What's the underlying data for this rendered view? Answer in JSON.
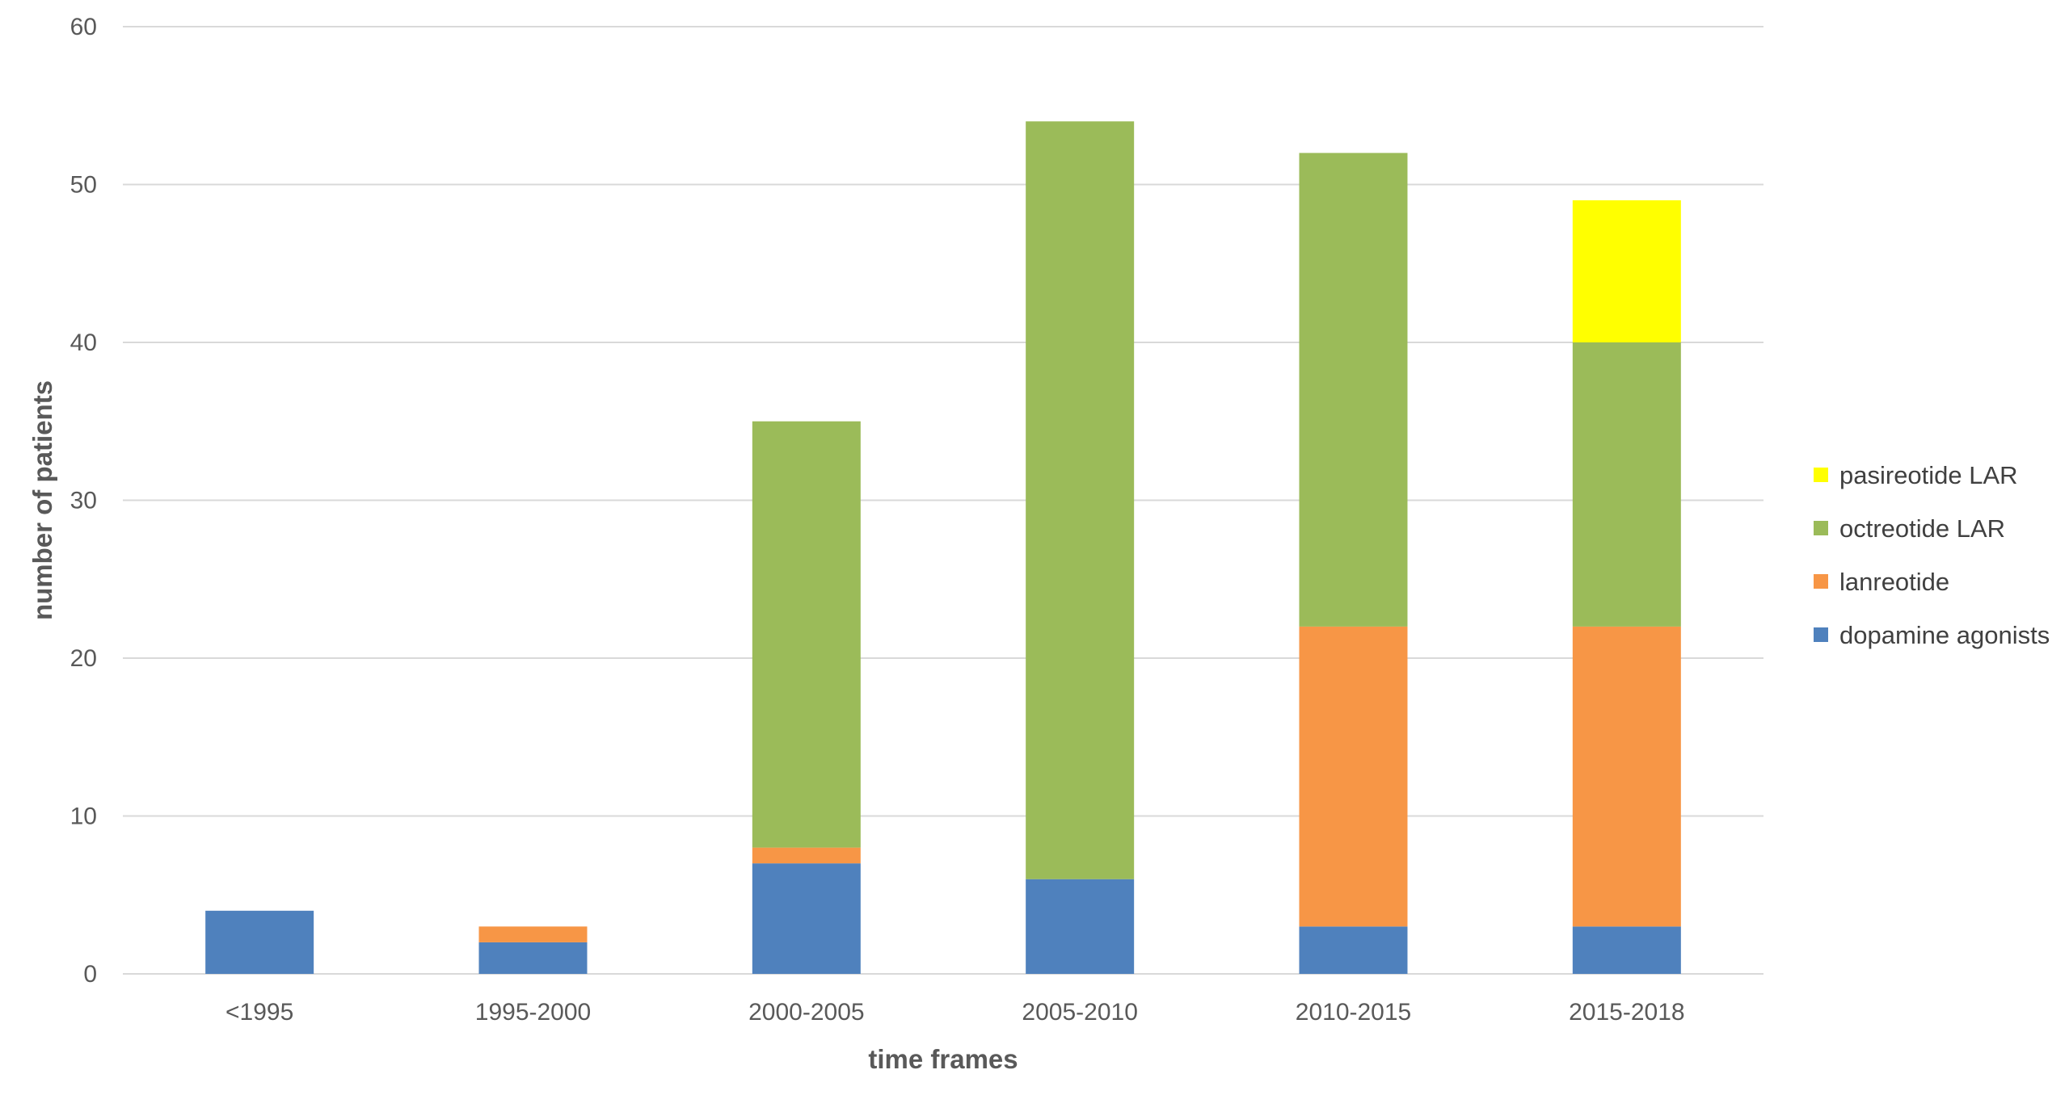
{
  "chart_data": {
    "type": "bar",
    "stacked": true,
    "categories": [
      "<1995",
      "1995-2000",
      "2000-2005",
      "2005-2010",
      "2010-2015",
      "2015-2018"
    ],
    "series": [
      {
        "name": "dopamine agonists",
        "color": "#4F81BD",
        "values": [
          4,
          2,
          7,
          6,
          3,
          3
        ]
      },
      {
        "name": "lanreotide",
        "color": "#F79646",
        "values": [
          0,
          1,
          1,
          0,
          19,
          19
        ]
      },
      {
        "name": "octreotide LAR",
        "color": "#9BBB59",
        "values": [
          0,
          0,
          27,
          48,
          30,
          18
        ]
      },
      {
        "name": "pasireotide LAR",
        "color": "#FFFF00",
        "values": [
          0,
          0,
          0,
          0,
          0,
          9
        ]
      }
    ],
    "xlabel": "time frames",
    "ylabel": "number of patients",
    "ylim": [
      0,
      60
    ],
    "yticks": [
      0,
      10,
      20,
      30,
      40,
      50,
      60
    ],
    "grid": true,
    "legend_position": "right",
    "legend_order": [
      "pasireotide LAR",
      "octreotide LAR",
      "lanreotide",
      "dopamine agonists"
    ],
    "colors": {
      "gridline": "#D9D9D9",
      "tick_text": "#595959",
      "legend_text": "#404040"
    }
  }
}
